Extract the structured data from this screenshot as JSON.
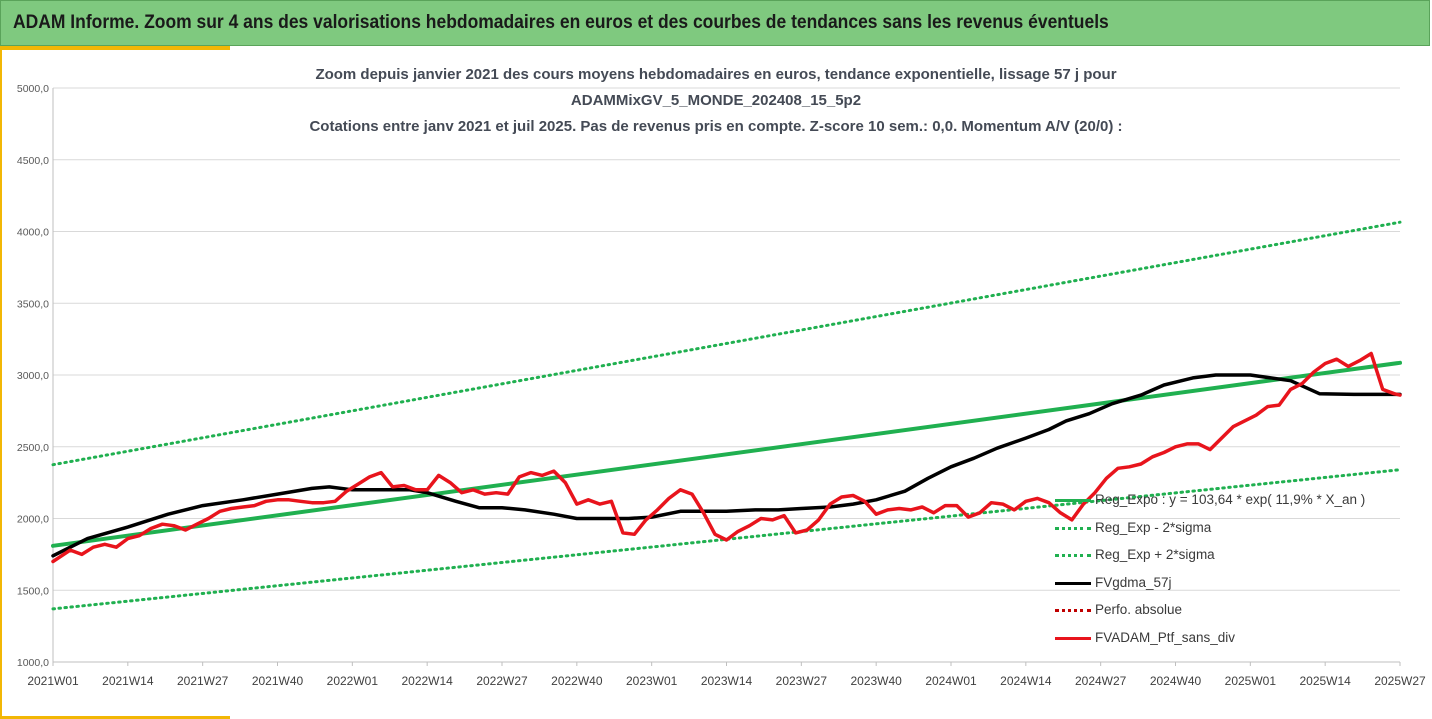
{
  "banner": {
    "title": "ADAM Informe. Zoom sur 4 ans des valorisations hebdomadaires en euros et des courbes de tendances sans les revenus éventuels"
  },
  "colors": {
    "banner_bg": "#7fc97f",
    "accent": "#f2b705",
    "trend": "#20b050",
    "smooth": "#000000",
    "portfolio": "#e8141c",
    "perfo": "#c00000"
  },
  "chart_data": {
    "type": "line",
    "title_lines": [
      "Zoom depuis janvier 2021 des cours moyens hebdomadaires  en euros, tendance exponentielle, lissage 57 j pour",
      "ADAMMixGV_5_MONDE_202408_15_5p2",
      "Cotations entre janv 2021 et juil 2025. Pas de revenus pris en compte. Z-score 10 sem.: 0,0. Momentum A/V (20/0) :"
    ],
    "xlabel": "",
    "ylabel": "",
    "ylim": [
      1000,
      5000
    ],
    "y_ticks": [
      "1000,0",
      "1500,0",
      "2000,0",
      "2500,0",
      "3000,0",
      "3500,0",
      "4000,0",
      "4500,0",
      "5000,0"
    ],
    "x_ticks": [
      "2021W01",
      "2021W14",
      "2021W27",
      "2021W40",
      "2022W01",
      "2022W14",
      "2022W27",
      "2022W40",
      "2023W01",
      "2023W14",
      "2023W27",
      "2023W40",
      "2024W01",
      "2024W14",
      "2024W27",
      "2024W40",
      "2025W01",
      "2025W14",
      "2025W27"
    ],
    "x_index_range": [
      0,
      234
    ],
    "legend_position": "bottom-right",
    "series": [
      {
        "name": "Reg_Expo : y = 103,64 * exp( 11,9% *  X_an )",
        "style": "solid",
        "color": "#20b050",
        "x": [
          0,
          234
        ],
        "y": [
          1810,
          3085
        ]
      },
      {
        "name": "Reg_Exp - 2*sigma",
        "style": "dotted",
        "color": "#20b050",
        "x": [
          0,
          234
        ],
        "y": [
          1370,
          2340
        ]
      },
      {
        "name": "Reg_Exp + 2*sigma",
        "style": "dotted",
        "color": "#20b050",
        "x": [
          0,
          234
        ],
        "y": [
          2375,
          4065
        ]
      },
      {
        "name": "FVgdma_57j",
        "style": "solid",
        "color": "#000000",
        "x": [
          0,
          6,
          13,
          20,
          26,
          33,
          39,
          45,
          48,
          52,
          57,
          62,
          65,
          70,
          74,
          78,
          82,
          87,
          91,
          96,
          100,
          104,
          109,
          113,
          117,
          122,
          126,
          130,
          135,
          139,
          143,
          148,
          152,
          156,
          160,
          164,
          169,
          173,
          176,
          180,
          184,
          189,
          193,
          198,
          202,
          208,
          215,
          220,
          226,
          234
        ],
        "y": [
          1740,
          1860,
          1940,
          2030,
          2090,
          2130,
          2170,
          2210,
          2220,
          2200,
          2200,
          2200,
          2180,
          2120,
          2075,
          2075,
          2060,
          2030,
          2000,
          2000,
          2000,
          2010,
          2050,
          2050,
          2050,
          2060,
          2060,
          2070,
          2080,
          2100,
          2130,
          2190,
          2280,
          2360,
          2420,
          2490,
          2560,
          2620,
          2680,
          2730,
          2800,
          2860,
          2930,
          2980,
          3000,
          3000,
          2960,
          2870,
          2865,
          2865
        ]
      },
      {
        "name": "FVADAM_Ptf_sans_div",
        "style": "solid",
        "color": "#e8141c",
        "x": [
          0,
          3,
          5,
          7,
          9,
          11,
          13,
          15,
          17,
          19,
          21,
          23,
          25,
          27,
          29,
          31,
          33,
          35,
          37,
          39,
          41,
          43,
          45,
          47,
          49,
          51,
          53,
          55,
          57,
          59,
          61,
          63,
          65,
          67,
          69,
          71,
          73,
          75,
          77,
          79,
          81,
          83,
          85,
          87,
          89,
          91,
          93,
          95,
          97,
          99,
          101,
          103,
          105,
          107,
          109,
          111,
          113,
          115,
          117,
          119,
          121,
          123,
          125,
          127,
          129,
          131,
          133,
          135,
          137,
          139,
          141,
          143,
          145,
          147,
          149,
          151,
          153,
          155,
          157,
          159,
          161,
          163,
          165,
          167,
          169,
          171,
          173,
          175,
          177,
          179,
          181,
          183,
          185,
          187,
          189,
          191,
          193,
          195,
          197,
          199,
          201,
          203,
          205,
          207,
          209,
          211,
          213,
          215,
          217,
          219,
          221,
          223,
          225,
          227,
          229,
          231,
          233,
          234
        ],
        "y": [
          1700,
          1780,
          1750,
          1800,
          1820,
          1800,
          1860,
          1880,
          1930,
          1960,
          1950,
          1920,
          1960,
          2000,
          2050,
          2070,
          2080,
          2090,
          2120,
          2130,
          2130,
          2120,
          2110,
          2110,
          2120,
          2190,
          2240,
          2290,
          2320,
          2220,
          2230,
          2200,
          2200,
          2300,
          2250,
          2180,
          2200,
          2170,
          2180,
          2170,
          2290,
          2320,
          2300,
          2330,
          2250,
          2100,
          2130,
          2100,
          2120,
          1900,
          1890,
          1990,
          2060,
          2140,
          2200,
          2170,
          2040,
          1890,
          1850,
          1910,
          1950,
          2000,
          1990,
          2020,
          1900,
          1920,
          1990,
          2100,
          2150,
          2160,
          2120,
          2030,
          2060,
          2070,
          2060,
          2080,
          2040,
          2090,
          2090,
          2010,
          2040,
          2110,
          2100,
          2060,
          2120,
          2140,
          2110,
          2040,
          1990,
          2100,
          2180,
          2280,
          2350,
          2360,
          2380,
          2430,
          2460,
          2500,
          2520,
          2520,
          2480,
          2560,
          2640,
          2680,
          2720,
          2780,
          2790,
          2900,
          2940,
          3020,
          3080,
          3110,
          3060,
          3100,
          3150,
          2900,
          2870,
          2860
        ]
      }
    ],
    "legend_extra": [
      {
        "name": "Perfo. absolue",
        "style": "dotted",
        "color": "#c00000"
      }
    ]
  }
}
